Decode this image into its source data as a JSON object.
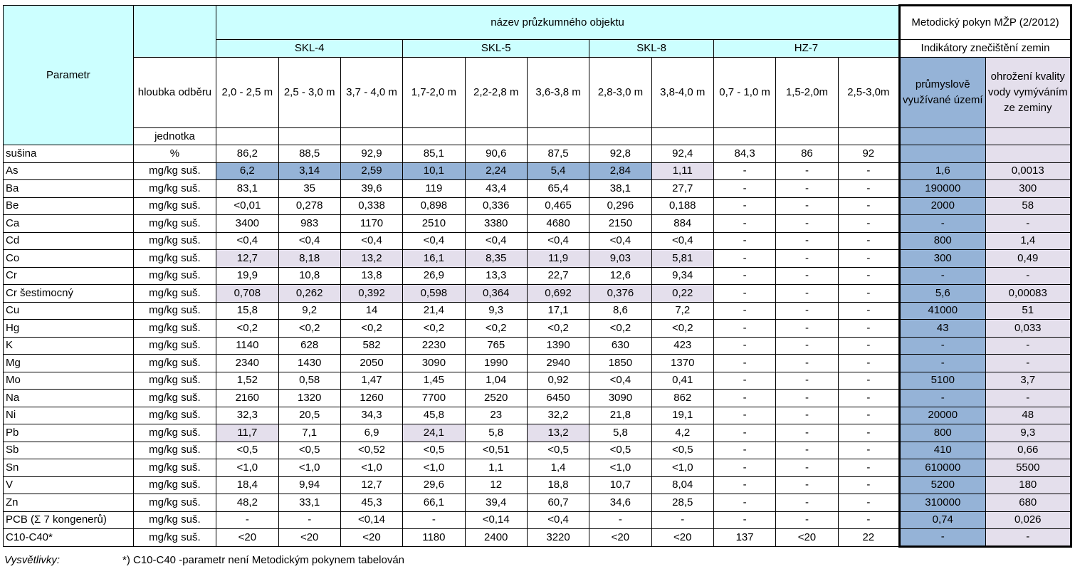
{
  "header": {
    "parametr": "Parametr",
    "object_name": "název průzkumného objektu",
    "depth_label": "hloubka odběru",
    "unit_label": "jednotka",
    "method_title": "Metodický pokyn MŽP (2/2012)",
    "indicators": "Indikátory znečištění zemin",
    "col_industrial": "průmyslově využívané území",
    "col_water": "ohrožení kvality vody vymýváním ze zeminy",
    "objects": [
      {
        "name": "SKL-4",
        "span": 3
      },
      {
        "name": "SKL-5",
        "span": 3
      },
      {
        "name": "SKL-8",
        "span": 2
      },
      {
        "name": "HZ-7",
        "span": 3
      }
    ],
    "depths": [
      "2,0 - 2,5 m",
      "2,5 - 3,0 m",
      "3,7 - 4,0 m",
      "1,7-2,0 m",
      "2,2-2,8 m",
      "3,6-3,8 m",
      "2,8-3,0 m",
      "3,8-4,0 m",
      "0,7 - 1,0 m",
      "1,5-2,0m",
      "2,5-3,0m"
    ]
  },
  "colors": {
    "cyan": "#ccffff",
    "blue": "#95b3d7",
    "lavender": "#e4dfec"
  },
  "rows": [
    {
      "param": "sušina",
      "unit": "%",
      "values": [
        "86,2",
        "88,5",
        "92,9",
        "85,1",
        "90,6",
        "87,5",
        "92,8",
        "92,4",
        "84,3",
        "86",
        "92"
      ],
      "hl": "",
      "ind": "",
      "water": ""
    },
    {
      "param": "As",
      "unit": "mg/kg suš.",
      "values": [
        "6,2",
        "3,14",
        "2,59",
        "10,1",
        "2,24",
        "5,4",
        "2,84",
        "1,11",
        "-",
        "-",
        "-"
      ],
      "hl": "bbbbbbbl",
      "ind": "1,6",
      "water": "0,0013"
    },
    {
      "param": "Ba",
      "unit": "mg/kg suš.",
      "values": [
        "83,1",
        "35",
        "39,6",
        "119",
        "43,4",
        "65,4",
        "38,1",
        "27,7",
        "-",
        "-",
        "-"
      ],
      "hl": "",
      "ind": "190000",
      "water": "300"
    },
    {
      "param": "Be",
      "unit": "mg/kg suš.",
      "values": [
        "<0,01",
        "0,278",
        "0,338",
        "0,898",
        "0,336",
        "0,465",
        "0,296",
        "0,188",
        "-",
        "-",
        "-"
      ],
      "hl": "",
      "ind": "2000",
      "water": "58"
    },
    {
      "param": "Ca",
      "unit": "mg/kg suš.",
      "values": [
        "3400",
        "983",
        "1170",
        "2510",
        "3380",
        "4680",
        "2150",
        "884",
        "-",
        "-",
        "-"
      ],
      "hl": "",
      "ind": "-",
      "water": "-"
    },
    {
      "param": "Cd",
      "unit": "mg/kg suš.",
      "values": [
        "<0,4",
        "<0,4",
        "<0,4",
        "<0,4",
        "<0,4",
        "<0,4",
        "<0,4",
        "<0,4",
        "-",
        "-",
        "-"
      ],
      "hl": "",
      "ind": "800",
      "water": "1,4"
    },
    {
      "param": "Co",
      "unit": "mg/kg suš.",
      "values": [
        "12,7",
        "8,18",
        "13,2",
        "16,1",
        "8,35",
        "11,9",
        "9,03",
        "5,81",
        "-",
        "-",
        "-"
      ],
      "hl": "llllllll",
      "ind": "300",
      "water": "0,49"
    },
    {
      "param": "Cr",
      "unit": "mg/kg suš.",
      "values": [
        "19,9",
        "10,8",
        "13,8",
        "26,9",
        "13,3",
        "22,7",
        "12,6",
        "9,34",
        "-",
        "-",
        "-"
      ],
      "hl": "",
      "ind": "-",
      "water": "-"
    },
    {
      "param": "Cr šestimocný",
      "unit": "mg/kg suš.",
      "values": [
        "0,708",
        "0,262",
        "0,392",
        "0,598",
        "0,364",
        "0,692",
        "0,376",
        "0,22",
        "-",
        "-",
        "-"
      ],
      "hl": "llllllll",
      "ind": "5,6",
      "water": "0,00083"
    },
    {
      "param": "Cu",
      "unit": "mg/kg suš.",
      "values": [
        "15,8",
        "9,2",
        "14",
        "21,4",
        "9,3",
        "17,1",
        "8,6",
        "7,2",
        "-",
        "-",
        "-"
      ],
      "hl": "",
      "ind": "41000",
      "water": "51"
    },
    {
      "param": "Hg",
      "unit": "mg/kg suš.",
      "values": [
        "<0,2",
        "<0,2",
        "<0,2",
        "<0,2",
        "<0,2",
        "<0,2",
        "<0,2",
        "<0,2",
        "-",
        "-",
        "-"
      ],
      "hl": "",
      "ind": "43",
      "water": "0,033"
    },
    {
      "param": "K",
      "unit": "mg/kg suš.",
      "values": [
        "1140",
        "628",
        "582",
        "2230",
        "765",
        "1390",
        "630",
        "423",
        "-",
        "-",
        "-"
      ],
      "hl": "",
      "ind": "-",
      "water": "-"
    },
    {
      "param": "Mg",
      "unit": "mg/kg suš.",
      "values": [
        "2340",
        "1430",
        "2050",
        "3090",
        "1990",
        "2940",
        "1850",
        "1370",
        "-",
        "-",
        "-"
      ],
      "hl": "",
      "ind": "-",
      "water": "-"
    },
    {
      "param": "Mo",
      "unit": "mg/kg suš.",
      "values": [
        "1,52",
        "0,58",
        "1,47",
        "1,45",
        "1,04",
        "0,92",
        "<0,4",
        "0,41",
        "-",
        "-",
        "-"
      ],
      "hl": "",
      "ind": "5100",
      "water": "3,7"
    },
    {
      "param": "Na",
      "unit": "mg/kg suš.",
      "values": [
        "2160",
        "1320",
        "1260",
        "7700",
        "2520",
        "6450",
        "3090",
        "862",
        "-",
        "-",
        "-"
      ],
      "hl": "",
      "ind": "-",
      "water": "-"
    },
    {
      "param": "Ni",
      "unit": "mg/kg suš.",
      "values": [
        "32,3",
        "20,5",
        "34,3",
        "45,8",
        "23",
        "32,2",
        "21,8",
        "19,1",
        "-",
        "-",
        "-"
      ],
      "hl": "",
      "ind": "20000",
      "water": "48"
    },
    {
      "param": "Pb",
      "unit": "mg/kg suš.",
      "values": [
        "11,7",
        "7,1",
        "6,9",
        "24,1",
        "5,8",
        "13,2",
        "5,8",
        "4,2",
        "-",
        "-",
        "-"
      ],
      "hl": "l..l.l..",
      "ind": "800",
      "water": "9,3"
    },
    {
      "param": "Sb",
      "unit": "mg/kg suš.",
      "values": [
        "<0,5",
        "<0,5",
        "<0,52",
        "<0,5",
        "<0,51",
        "<0,5",
        "<0,5",
        "<0,5",
        "-",
        "-",
        "-"
      ],
      "hl": "",
      "ind": "410",
      "water": "0,66"
    },
    {
      "param": "Sn",
      "unit": "mg/kg suš.",
      "values": [
        "<1,0",
        "<1,0",
        "<1,0",
        "<1,0",
        "1,1",
        "1,4",
        "<1,0",
        "<1,0",
        "-",
        "-",
        "-"
      ],
      "hl": "",
      "ind": "610000",
      "water": "5500"
    },
    {
      "param": "V",
      "unit": "mg/kg suš.",
      "values": [
        "18,4",
        "9,94",
        "12,7",
        "29,6",
        "12",
        "18,8",
        "10,7",
        "8,04",
        "-",
        "-",
        "-"
      ],
      "hl": "",
      "ind": "5200",
      "water": "180"
    },
    {
      "param": "Zn",
      "unit": "mg/kg suš.",
      "values": [
        "48,2",
        "33,1",
        "45,3",
        "66,1",
        "39,4",
        "60,7",
        "34,6",
        "28,5",
        "-",
        "-",
        "-"
      ],
      "hl": "",
      "ind": "310000",
      "water": "680"
    },
    {
      "param": "PCB (Σ 7 kongenerů)",
      "unit": "mg/kg suš.",
      "values": [
        "-",
        "-",
        "<0,14",
        "-",
        "<0,14",
        "<0,4",
        "-",
        "-",
        "-",
        "-",
        "-"
      ],
      "hl": "",
      "ind": "0,74",
      "water": "0,026"
    },
    {
      "param": "C10-C40*",
      "unit": "mg/kg suš.",
      "values": [
        "<20",
        "<20",
        "<20",
        "1180",
        "2400",
        "3220",
        "<20",
        "<20",
        "137",
        "<20",
        "22"
      ],
      "hl": "",
      "ind": "-",
      "water": "-"
    }
  ],
  "footnote": {
    "label": "Vysvětlivky:",
    "text": "*) C10-C40 -parametr není Metodickým pokynem tabelován"
  }
}
